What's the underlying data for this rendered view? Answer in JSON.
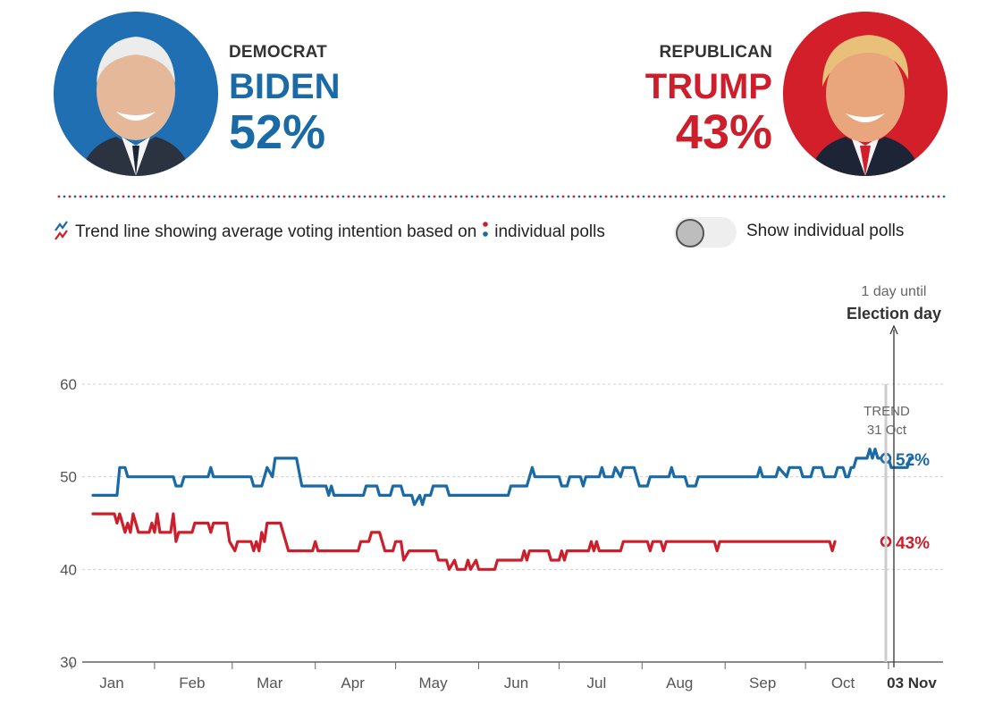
{
  "candidates": {
    "democrat": {
      "party": "DEMOCRAT",
      "name": "BIDEN",
      "percent": "52%",
      "color": "#1a6aa6"
    },
    "republican": {
      "party": "REPUBLICAN",
      "name": "TRUMP",
      "percent": "43%",
      "color": "#cc1f2b"
    }
  },
  "legend": {
    "text_before": "Trend line showing average voting intention based on",
    "text_after": "individual polls"
  },
  "toggle": {
    "label": "Show individual polls",
    "checked": false
  },
  "chart_data": {
    "type": "line",
    "ylim": [
      30,
      60
    ],
    "yticks": [
      30,
      40,
      50,
      60
    ],
    "xlim": [
      0,
      307
    ],
    "month_ticks": [
      {
        "label": "Jan",
        "day": 15
      },
      {
        "label": "Feb",
        "day": 45
      },
      {
        "label": "Mar",
        "day": 74
      },
      {
        "label": "Apr",
        "day": 105
      },
      {
        "label": "May",
        "day": 135
      },
      {
        "label": "Jun",
        "day": 166
      },
      {
        "label": "Jul",
        "day": 196
      },
      {
        "label": "Aug",
        "day": 227
      },
      {
        "label": "Sep",
        "day": 258
      },
      {
        "label": "Oct",
        "day": 288
      }
    ],
    "election": {
      "label": "03 Nov",
      "countdown": "1 day until",
      "title": "Election day",
      "day": 307
    },
    "trend_label": {
      "line1": "TREND",
      "line2": "31 Oct",
      "day": 304
    },
    "series": [
      {
        "name": "BIDEN",
        "color": "#1a6aa6",
        "end_label": "52%",
        "points": [
          [
            8,
            48
          ],
          [
            17,
            48
          ],
          [
            18,
            51
          ],
          [
            20,
            51
          ],
          [
            21,
            50
          ],
          [
            38,
            50
          ],
          [
            39,
            49
          ],
          [
            41,
            49
          ],
          [
            42,
            50
          ],
          [
            51,
            50
          ],
          [
            52,
            51
          ],
          [
            53,
            50
          ],
          [
            67,
            50
          ],
          [
            68,
            49
          ],
          [
            71,
            49
          ],
          [
            72,
            50
          ],
          [
            73,
            51
          ],
          [
            75,
            50
          ],
          [
            76,
            52
          ],
          [
            84,
            52
          ],
          [
            86,
            49
          ],
          [
            95,
            49
          ],
          [
            96,
            48
          ],
          [
            97,
            49
          ],
          [
            98,
            48
          ],
          [
            109,
            48
          ],
          [
            110,
            49
          ],
          [
            114,
            49
          ],
          [
            115,
            48
          ],
          [
            119,
            48
          ],
          [
            120,
            49
          ],
          [
            123,
            49
          ],
          [
            124,
            48
          ],
          [
            127,
            48
          ],
          [
            128,
            47
          ],
          [
            130,
            48
          ],
          [
            131,
            47
          ],
          [
            132,
            48
          ],
          [
            134,
            48
          ],
          [
            135,
            49
          ],
          [
            140,
            49
          ],
          [
            141,
            48
          ],
          [
            163,
            48
          ],
          [
            164,
            49
          ],
          [
            170,
            49
          ],
          [
            171,
            50
          ],
          [
            172,
            51
          ],
          [
            173,
            50
          ],
          [
            182,
            50
          ],
          [
            183,
            49
          ],
          [
            185,
            49
          ],
          [
            186,
            50
          ],
          [
            190,
            50
          ],
          [
            191,
            49
          ],
          [
            192,
            50
          ],
          [
            197,
            50
          ],
          [
            198,
            51
          ],
          [
            199,
            50
          ],
          [
            202,
            50
          ],
          [
            203,
            51
          ],
          [
            205,
            50
          ],
          [
            206,
            51
          ],
          [
            210,
            51
          ],
          [
            212,
            49
          ],
          [
            215,
            49
          ],
          [
            216,
            50
          ],
          [
            223,
            50
          ],
          [
            224,
            51
          ],
          [
            225,
            50
          ],
          [
            229,
            50
          ],
          [
            230,
            49
          ],
          [
            233,
            49
          ],
          [
            234,
            50
          ],
          [
            256,
            50
          ],
          [
            257,
            51
          ],
          [
            258,
            50
          ],
          [
            263,
            50
          ],
          [
            264,
            51
          ],
          [
            267,
            50
          ],
          [
            268,
            51
          ],
          [
            272,
            51
          ],
          [
            273,
            50
          ],
          [
            276,
            50
          ],
          [
            277,
            51
          ],
          [
            280,
            51
          ],
          [
            281,
            50
          ],
          [
            285,
            50
          ],
          [
            286,
            51
          ],
          [
            288,
            51
          ],
          [
            289,
            50
          ],
          [
            290,
            50
          ],
          [
            291,
            51
          ],
          [
            292,
            51
          ],
          [
            293,
            52
          ],
          [
            297,
            52
          ],
          [
            298,
            53
          ],
          [
            299,
            52
          ],
          [
            300,
            53
          ],
          [
            301,
            52
          ],
          [
            305,
            52
          ],
          [
            306,
            51
          ],
          [
            312,
            51
          ],
          [
            313,
            52
          ],
          [
            314,
            52
          ]
        ]
      },
      {
        "name": "TRUMP",
        "color": "#cc1f2b",
        "end_label": "43%",
        "points": [
          [
            8,
            46
          ],
          [
            16,
            46
          ],
          [
            17,
            45
          ],
          [
            18,
            46
          ],
          [
            19,
            45
          ],
          [
            20,
            44
          ],
          [
            21,
            45
          ],
          [
            22,
            44
          ],
          [
            23,
            46
          ],
          [
            24,
            45
          ],
          [
            25,
            44
          ],
          [
            29,
            44
          ],
          [
            30,
            45
          ],
          [
            31,
            44
          ],
          [
            32,
            46
          ],
          [
            33,
            44
          ],
          [
            37,
            44
          ],
          [
            38,
            46
          ],
          [
            39,
            43
          ],
          [
            40,
            44
          ],
          [
            45,
            44
          ],
          [
            46,
            45
          ],
          [
            51,
            45
          ],
          [
            52,
            44
          ],
          [
            53,
            45
          ],
          [
            58,
            45
          ],
          [
            59,
            43
          ],
          [
            61,
            42
          ],
          [
            62,
            43
          ],
          [
            67,
            43
          ],
          [
            68,
            42
          ],
          [
            69,
            43
          ],
          [
            70,
            42
          ],
          [
            71,
            44
          ],
          [
            72,
            43
          ],
          [
            73,
            45
          ],
          [
            78,
            45
          ],
          [
            80,
            43
          ],
          [
            81,
            42
          ],
          [
            90,
            42
          ],
          [
            91,
            43
          ],
          [
            92,
            42
          ],
          [
            107,
            42
          ],
          [
            108,
            43
          ],
          [
            111,
            43
          ],
          [
            112,
            44
          ],
          [
            115,
            44
          ],
          [
            116,
            43
          ],
          [
            117,
            42
          ],
          [
            120,
            42
          ],
          [
            121,
            43
          ],
          [
            123,
            43
          ],
          [
            124,
            41
          ],
          [
            126,
            42
          ],
          [
            136,
            42
          ],
          [
            137,
            41
          ],
          [
            140,
            41
          ],
          [
            141,
            40
          ],
          [
            143,
            41
          ],
          [
            144,
            40
          ],
          [
            147,
            40
          ],
          [
            148,
            41
          ],
          [
            149,
            40
          ],
          [
            151,
            41
          ],
          [
            152,
            40
          ],
          [
            158,
            40
          ],
          [
            159,
            41
          ],
          [
            168,
            41
          ],
          [
            169,
            42
          ],
          [
            170,
            41
          ],
          [
            171,
            42
          ],
          [
            178,
            42
          ],
          [
            179,
            41
          ],
          [
            182,
            41
          ],
          [
            183,
            42
          ],
          [
            184,
            41
          ],
          [
            185,
            42
          ],
          [
            193,
            42
          ],
          [
            194,
            43
          ],
          [
            195,
            42
          ],
          [
            196,
            43
          ],
          [
            197,
            42
          ],
          [
            205,
            42
          ],
          [
            206,
            43
          ],
          [
            215,
            43
          ],
          [
            216,
            42
          ],
          [
            217,
            43
          ],
          [
            220,
            43
          ],
          [
            221,
            42
          ],
          [
            222,
            43
          ],
          [
            240,
            43
          ],
          [
            241,
            42
          ],
          [
            242,
            43
          ],
          [
            283,
            43
          ],
          [
            284,
            42
          ],
          [
            285,
            43
          ]
        ]
      }
    ]
  }
}
